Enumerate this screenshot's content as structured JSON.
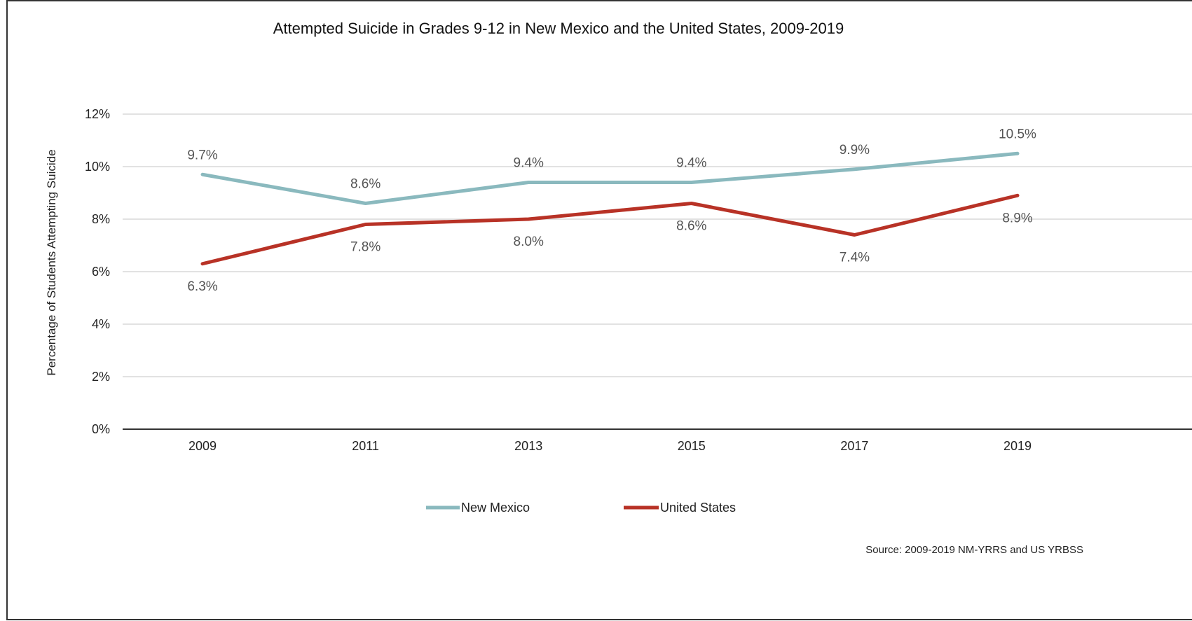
{
  "colors": {
    "new_mexico": "#8ab9be",
    "united_states": "#b83226",
    "grid": "#d9d9d9",
    "axis": "#333333"
  },
  "chart_data": {
    "type": "line",
    "title": "Attempted Suicide in Grades 9-12 in New Mexico and the United States, 2009-2019",
    "xlabel": "",
    "ylabel": "Percentage of Students Attempting Suicide",
    "categories": [
      "2009",
      "2011",
      "2013",
      "2015",
      "2017",
      "2019"
    ],
    "ylim": [
      0,
      12
    ],
    "yticks": [
      0,
      2,
      4,
      6,
      8,
      10,
      12
    ],
    "ytick_labels": [
      "0%",
      "2%",
      "4%",
      "6%",
      "8%",
      "10%",
      "12%"
    ],
    "grid": true,
    "legend_position": "bottom",
    "series": [
      {
        "name": "New Mexico",
        "values": [
          9.7,
          8.6,
          9.4,
          9.4,
          9.9,
          10.5
        ],
        "labels": [
          "9.7%",
          "8.6%",
          "9.4%",
          "9.4%",
          "9.9%",
          "10.5%"
        ]
      },
      {
        "name": "United States",
        "values": [
          6.3,
          7.8,
          8.0,
          8.6,
          7.4,
          8.9
        ],
        "labels": [
          "6.3%",
          "7.8%",
          "8.0%",
          "8.6%",
          "7.4%",
          "8.9%"
        ]
      }
    ],
    "source": "Source: 2009-2019 NM-YRRS and US YRBSS"
  }
}
